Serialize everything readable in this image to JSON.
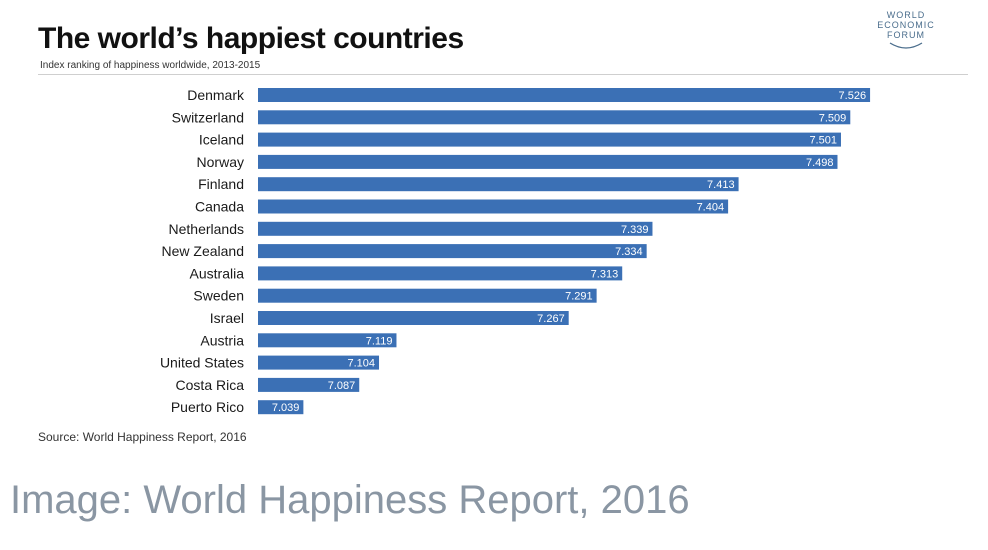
{
  "header": {
    "title": "The world’s happiest countries",
    "subtitle": "Index ranking of happiness worldwide, 2013-2015"
  },
  "logo": {
    "line1": "WORLD",
    "line2": "ECONOMIC",
    "line3": "FORUM"
  },
  "footer": {
    "source": "Source: World Happiness Report, 2016",
    "credit": "Image: World Happiness Report, 2016"
  },
  "colors": {
    "bar": "#3b70b5",
    "bar_label": "#ffffff"
  },
  "chart_data": {
    "type": "bar",
    "orientation": "horizontal",
    "title": "The world’s happiest countries",
    "subtitle": "Index ranking of happiness worldwide, 2013-2015",
    "categories": [
      "Denmark",
      "Switzerland",
      "Iceland",
      "Norway",
      "Finland",
      "Canada",
      "Netherlands",
      "New Zealand",
      "Australia",
      "Sweden",
      "Israel",
      "Austria",
      "United States",
      "Costa Rica",
      "Puerto Rico"
    ],
    "values": [
      7.526,
      7.509,
      7.501,
      7.498,
      7.413,
      7.404,
      7.339,
      7.334,
      7.313,
      7.291,
      7.267,
      7.119,
      7.104,
      7.087,
      7.039
    ],
    "value_labels": [
      "7.526",
      "7.509",
      "7.501",
      "7.498",
      "7.413",
      "7.404",
      "7.339",
      "7.334",
      "7.313",
      "7.291",
      "7.267",
      "7.119",
      "7.104",
      "7.087",
      "7.039"
    ],
    "xlim": [
      7.0,
      7.55
    ],
    "grid": false,
    "legend": "none"
  }
}
